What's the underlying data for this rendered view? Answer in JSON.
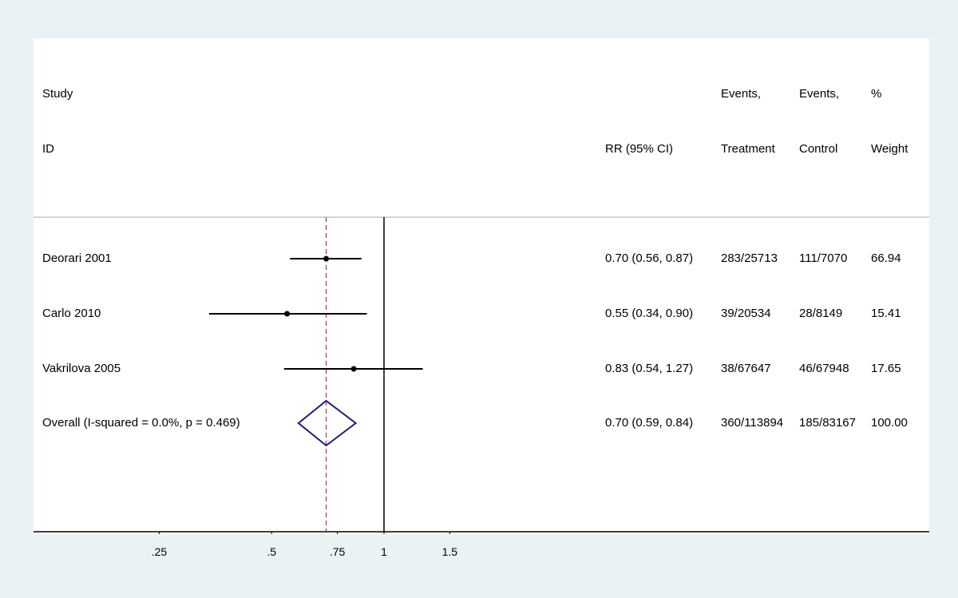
{
  "chart_data": {
    "type": "forest",
    "x_scale": "log",
    "x_ticks": [
      0.25,
      0.5,
      0.75,
      1,
      1.5
    ],
    "x_tick_labels": [
      ".25",
      ".5",
      ".75",
      "1",
      "1.5"
    ],
    "reference_line": 1,
    "pooled_line": 0.7,
    "headers": {
      "study_1": "Study",
      "study_2": "ID",
      "rr": "RR (95% CI)",
      "treat_1": "Events,",
      "treat_2": "Treatment",
      "ctrl_1": "Events,",
      "ctrl_2": "Control",
      "weight_1": "%",
      "weight_2": "Weight"
    },
    "studies": [
      {
        "label": "Deorari 2001",
        "rr": 0.7,
        "lo": 0.56,
        "hi": 0.87,
        "rr_text": "0.70 (0.56, 0.87)",
        "treatment": "283/25713",
        "control": "111/7070",
        "weight": "66.94"
      },
      {
        "label": "Carlo 2010",
        "rr": 0.55,
        "lo": 0.34,
        "hi": 0.9,
        "rr_text": "0.55 (0.34, 0.90)",
        "treatment": "39/20534",
        "control": "28/8149",
        "weight": "15.41"
      },
      {
        "label": "Vakrilova 2005",
        "rr": 0.83,
        "lo": 0.54,
        "hi": 1.27,
        "rr_text": "0.83 (0.54, 1.27)",
        "treatment": "38/67647",
        "control": "46/67948",
        "weight": "17.65"
      }
    ],
    "overall": {
      "label": "Overall  (I-squared = 0.0%, p = 0.469)",
      "rr": 0.7,
      "lo": 0.59,
      "hi": 0.84,
      "rr_text": "0.70 (0.59, 0.84)",
      "treatment": "360/113894",
      "control": "185/83167",
      "weight": "100.00"
    },
    "colors": {
      "ci_line": "#000000",
      "diamond": "#1a1f6e",
      "pooled_line": "#c0392b",
      "separator": "#aaaaaa",
      "background": "#eaf2f3"
    }
  }
}
